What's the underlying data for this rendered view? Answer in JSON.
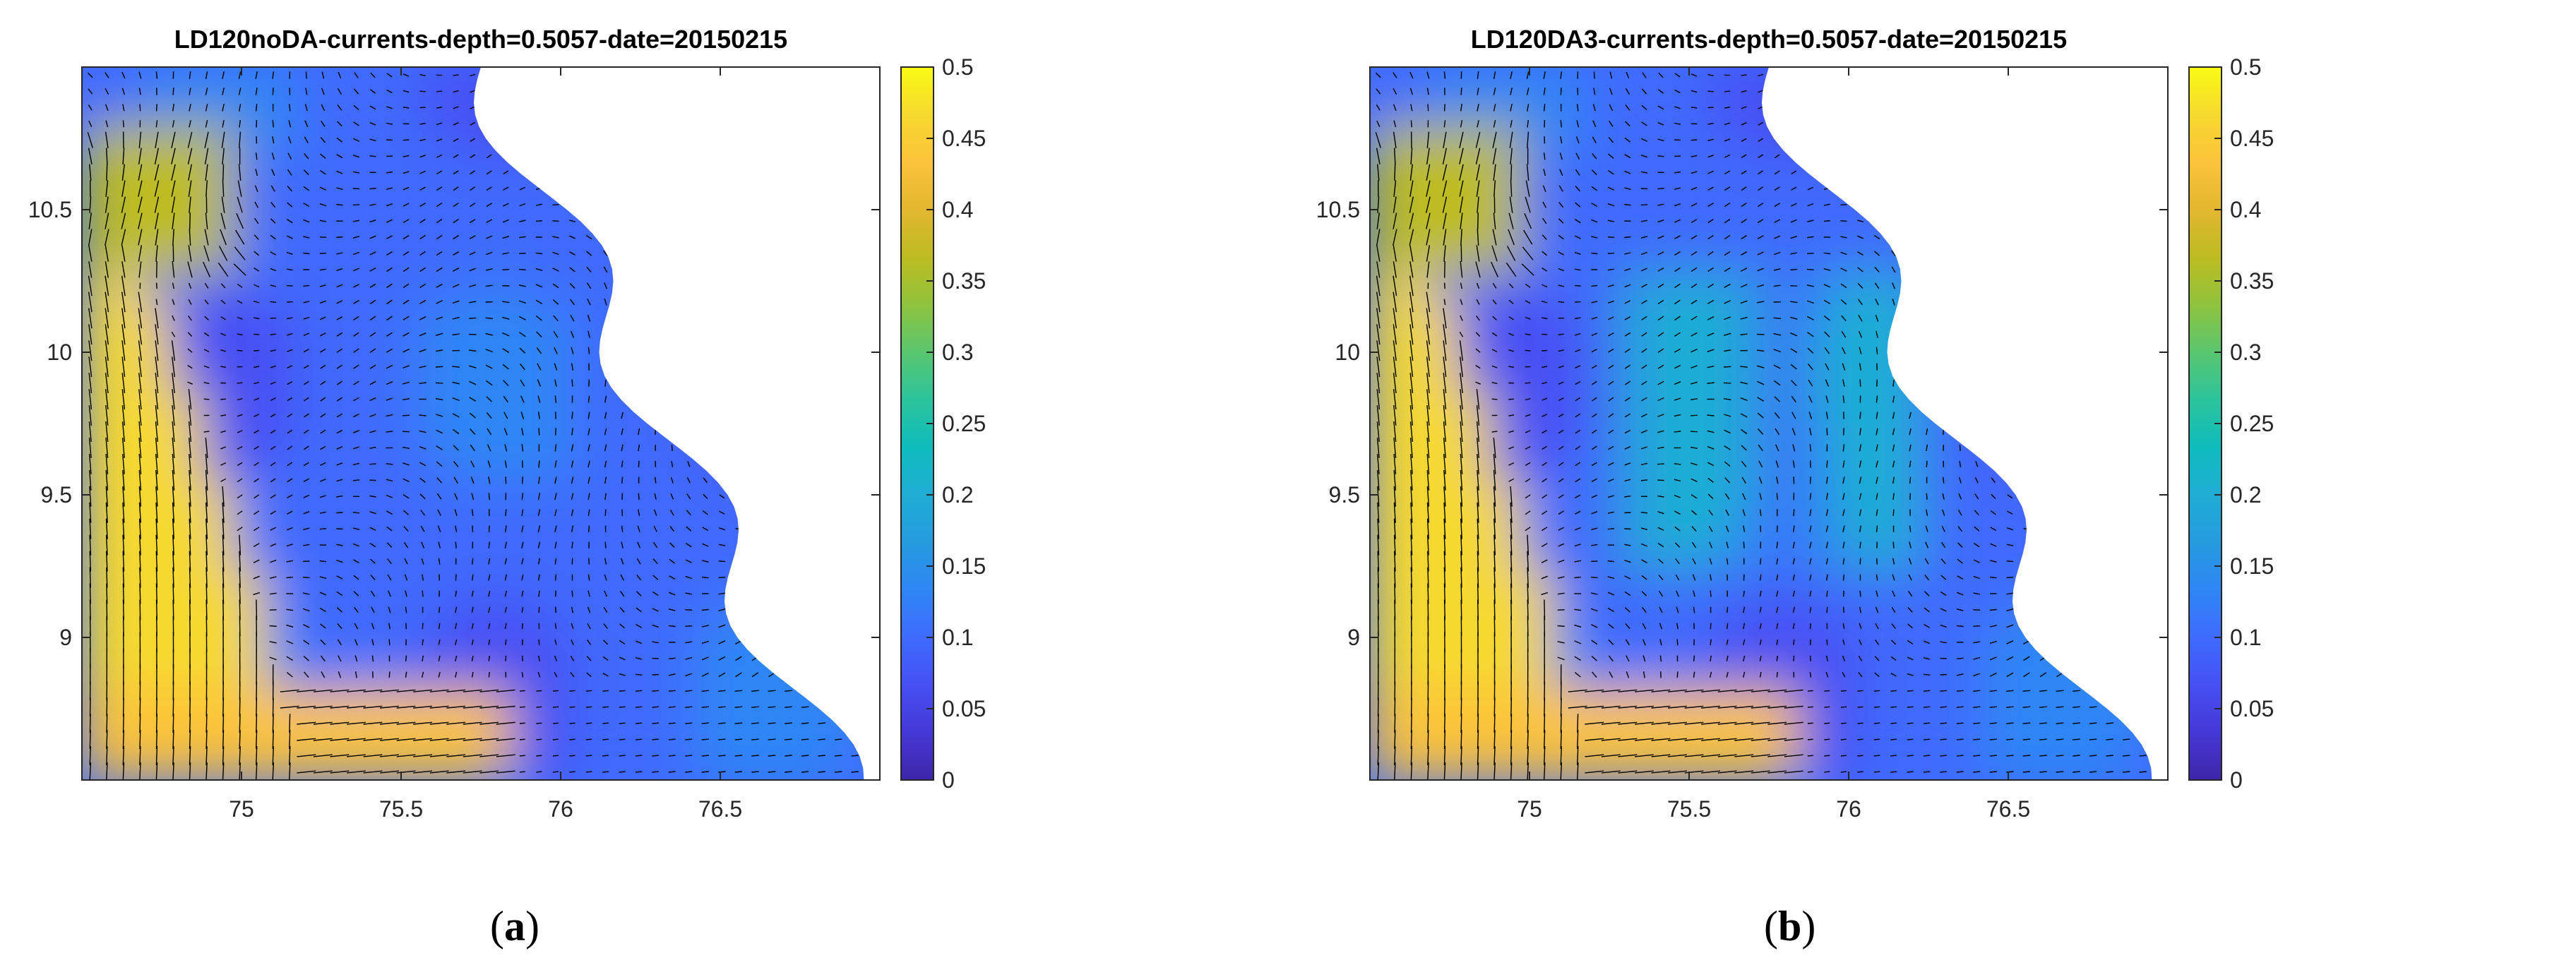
{
  "colors": {
    "colormap": [
      "#3e26a8",
      "#4538d6",
      "#4650f3",
      "#3f6bfd",
      "#2f86f5",
      "#259bde",
      "#1fadd4",
      "#0ebcbc",
      "#2cc49c",
      "#59c66f",
      "#8fc33d",
      "#bdbc21",
      "#e2b72f",
      "#fcc33a",
      "#f6d92e",
      "#f9fb15"
    ],
    "land": "#ffffff",
    "arrow": "#000000"
  },
  "panels": [
    {
      "label_letter": "a",
      "chart_data": {
        "type": "heatmap",
        "title": "LD120noDA-currents-depth=0.5057-date=20150215",
        "xlim": [
          74.5,
          77.0
        ],
        "ylim": [
          8.5,
          11.0
        ],
        "x_ticks": [
          "75",
          "75.5",
          "76",
          "76.5"
        ],
        "y_ticks": [
          "9",
          "9.5",
          "10",
          "10.5"
        ],
        "colorbar": {
          "range": [
            0,
            0.5
          ],
          "ticks": [
            "0",
            "0.05",
            "0.1",
            "0.15",
            "0.2",
            "0.25",
            "0.3",
            "0.35",
            "0.4",
            "0.45",
            "0.5"
          ]
        }
      }
    },
    {
      "label_letter": "b",
      "chart_data": {
        "type": "heatmap",
        "title": "LD120DA3-currents-depth=0.5057-date=20150215",
        "xlim": [
          74.5,
          77.0
        ],
        "ylim": [
          8.5,
          11.0
        ],
        "x_ticks": [
          "75",
          "75.5",
          "76",
          "76.5"
        ],
        "y_ticks": [
          "9",
          "9.5",
          "10",
          "10.5"
        ],
        "colorbar": {
          "range": [
            0,
            0.5
          ],
          "ticks": [
            "0",
            "0.05",
            "0.1",
            "0.15",
            "0.2",
            "0.25",
            "0.3",
            "0.35",
            "0.4",
            "0.45",
            "0.5"
          ]
        }
      }
    }
  ]
}
